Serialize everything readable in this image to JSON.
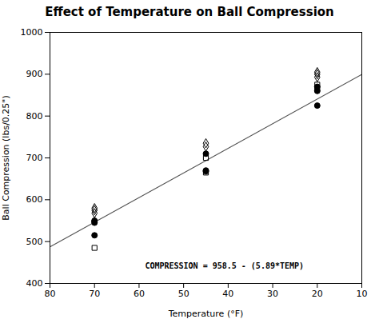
{
  "chart_data": {
    "type": "scatter",
    "title": "Effect of Temperature on Ball Compression",
    "xlabel": "Temperature (°F)",
    "ylabel": "Ball Compression (lbs/0.25\")",
    "xlim": [
      80,
      10
    ],
    "ylim": [
      400,
      1000
    ],
    "xticks": [
      80,
      70,
      60,
      50,
      40,
      30,
      20,
      10
    ],
    "yticks": [
      400,
      500,
      600,
      700,
      800,
      900,
      1000
    ],
    "grid": false,
    "series": [
      {
        "type": "line",
        "color": "#555555",
        "x": [
          10,
          80
        ],
        "values": [
          899.6,
          487.3
        ]
      },
      {
        "type": "scatter",
        "marker": "circle",
        "color": "#000000",
        "x": [
          70,
          70,
          70,
          70,
          45,
          45,
          45,
          20,
          20,
          20
        ],
        "values": [
          545,
          548,
          515,
          550,
          710,
          670,
          668,
          870,
          860,
          825
        ]
      },
      {
        "type": "scatter",
        "marker": "square-open",
        "color": "#000000",
        "x": [
          70,
          45,
          45,
          20,
          20
        ],
        "values": [
          485,
          700,
          665,
          875,
          865
        ]
      },
      {
        "type": "scatter",
        "marker": "diamond-open",
        "color": "#000000",
        "x": [
          70,
          70,
          70,
          45,
          45,
          20,
          20,
          20
        ],
        "values": [
          575,
          580,
          568,
          735,
          727,
          905,
          900,
          893
        ]
      }
    ],
    "annotations": [
      {
        "text": "COMPRESSION = 958.5 - (5.89*TEMP)",
        "x": 23,
        "y": 435
      }
    ]
  }
}
